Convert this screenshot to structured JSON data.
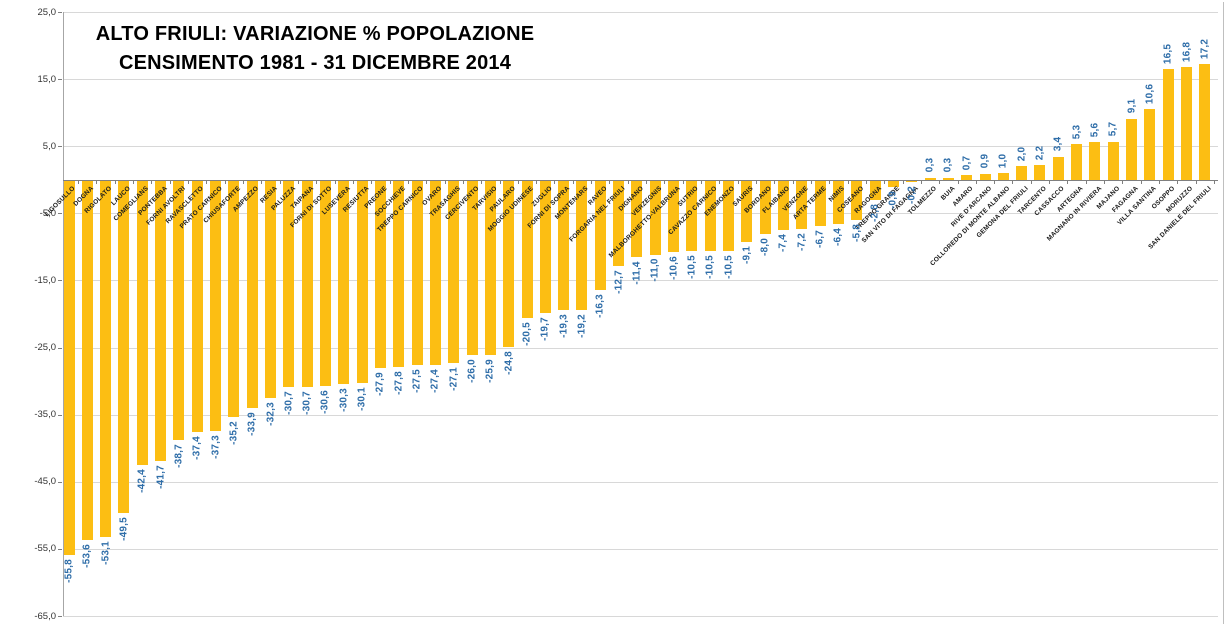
{
  "title": {
    "line1": "ALTO FRIULI: VARIAZIONE % POPOLAZIONE",
    "line2": "CENSIMENTO 1981 - 31 DICEMBRE 2014"
  },
  "chart_data": {
    "type": "bar",
    "title": "ALTO FRIULI: VARIAZIONE % POPOLAZIONE CENSIMENTO 1981 - 31 DICEMBRE 2014",
    "xlabel": "",
    "ylabel": "",
    "ylim": [
      -65,
      25
    ],
    "grid": true,
    "legend": "none",
    "y_ticks": [
      25,
      15,
      5,
      -5,
      -15,
      -25,
      -35,
      -45,
      -55,
      -65
    ],
    "y_tick_labels": [
      "25,0",
      "15,0",
      "5,0",
      "-5,0",
      "-15,0",
      "-25,0",
      "-35,0",
      "-45,0",
      "-55,0",
      "-65,0"
    ],
    "bar_color": "#FCBE13",
    "value_label_color": "#2E6DA8",
    "categories": [
      "LIGOSULLO",
      "DOGNA",
      "RIGOLATO",
      "LAUCO",
      "COMEGLIANS",
      "PONTEBBA",
      "FORNI AVOLTRI",
      "RAVASCLETTO",
      "PRATO CARNICO",
      "CHIUSAFORTE",
      "AMPEZZO",
      "RESIA",
      "PALUZZA",
      "TAIPANA",
      "FORNI DI SOTTO",
      "LUSEVERA",
      "RESIUTTA",
      "PREONE",
      "SOCCHIEVE",
      "TREPPO CARNICO",
      "OVARO",
      "TRASAGHIS",
      "CERCIVENTO",
      "TARVISIO",
      "PAULARO",
      "MOGGIO UDINESE",
      "ZUGLIO",
      "FORNI DI SOPRA",
      "MONTENARS",
      "RAVEO",
      "FORGARIA NEL FRIULI",
      "DIGNANO",
      "VERZEGNIS",
      "MALBORGHETTO-VALBRUNA",
      "SUTRIO",
      "CAVAZZO CARNICO",
      "ENEMONZO",
      "SAURIS",
      "BORDANO",
      "FLAIBANO",
      "VENZONE",
      "ARTA TERME",
      "NIMIS",
      "COSEANO",
      "RAGOGNA",
      "TREPPO GRANDE",
      "SAN VITO DI FAGAGNA",
      "TOLMEZZO",
      "BUIA",
      "AMARO",
      "RIVE D'ARCANO",
      "COLLOREDO DI MONTE ALBANO",
      "GEMONA DEL FRIULI",
      "TARCENTO",
      "CASSACCO",
      "ARTEGNA",
      "MAGNANO IN RIVIERA",
      "MAJANO",
      "FAGAGNA",
      "VILLA SANTINA",
      "OSOPPO",
      "MORUZZO",
      "SAN DANIELE DEL FRIULI"
    ],
    "values": [
      -55.8,
      -53.6,
      -53.1,
      -49.5,
      -42.4,
      -41.7,
      -38.7,
      -37.4,
      -37.3,
      -35.2,
      -33.9,
      -32.3,
      -30.7,
      -30.7,
      -30.6,
      -30.3,
      -30.1,
      -27.9,
      -27.8,
      -27.5,
      -27.4,
      -27.1,
      -26.0,
      -25.9,
      -24.8,
      -20.5,
      -19.7,
      -19.3,
      -19.2,
      -16.3,
      -12.7,
      -11.4,
      -11.0,
      -10.6,
      -10.5,
      -10.5,
      -10.5,
      -9.1,
      -8.0,
      -7.4,
      -7.2,
      -6.7,
      -6.4,
      -5.8,
      -2.8,
      -0.9,
      -0.2,
      0.3,
      0.3,
      0.7,
      0.9,
      1.0,
      2.0,
      2.2,
      3.4,
      5.3,
      5.6,
      5.7,
      9.1,
      10.6,
      16.5,
      16.8,
      17.2
    ],
    "value_labels": [
      "-55,8",
      "-53,6",
      "-53,1",
      "-49,5",
      "-42,4",
      "-41,7",
      "-38,7",
      "-37,4",
      "-37,3",
      "-35,2",
      "-33,9",
      "-32,3",
      "-30,7",
      "-30,7",
      "-30,6",
      "-30,3",
      "-30,1",
      "-27,9",
      "-27,8",
      "-27,5",
      "-27,4",
      "-27,1",
      "-26,0",
      "-25,9",
      "-24,8",
      "-20,5",
      "-19,7",
      "-19,3",
      "-19,2",
      "-16,3",
      "-12,7",
      "-11,4",
      "-11,0",
      "-10,6",
      "-10,5",
      "-10,5",
      "-10,5",
      "-9,1",
      "-8,0",
      "-7,4",
      "-7,2",
      "-6,7",
      "-6,4",
      "-5,8",
      "-2,8",
      "-0,9",
      "-0,2",
      "0,3",
      "0,3",
      "0,7",
      "0,9",
      "1,0",
      "2,0",
      "2,2",
      "3,4",
      "5,3",
      "5,6",
      "5,7",
      "9,1",
      "10,6",
      "16,5",
      "16,8",
      "17,2"
    ]
  }
}
